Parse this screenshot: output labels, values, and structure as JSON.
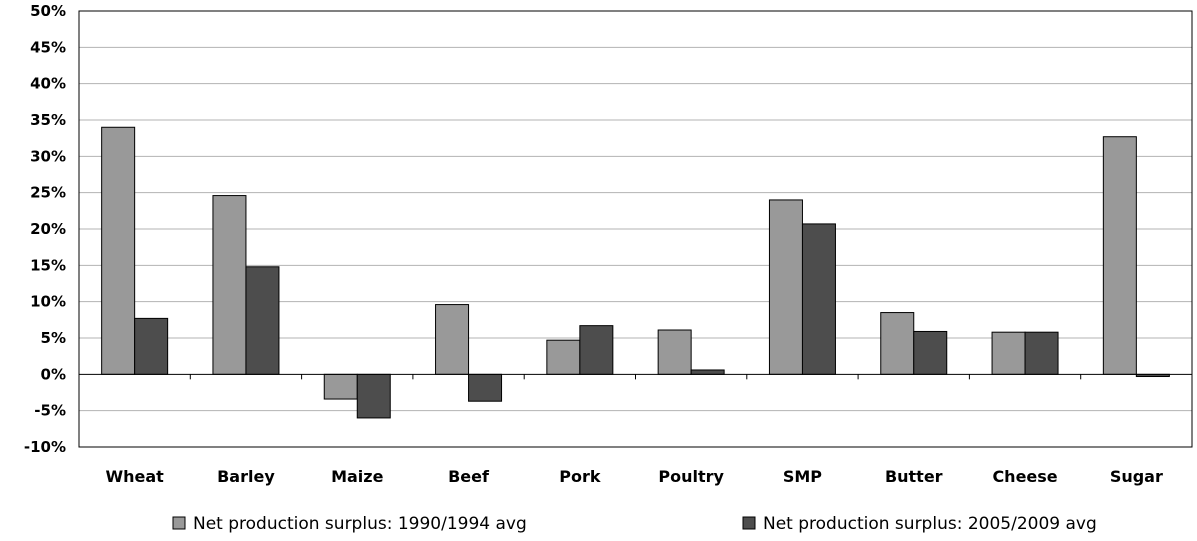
{
  "chart_data": {
    "type": "bar",
    "categories": [
      "Wheat",
      "Barley",
      "Maize",
      "Beef",
      "Pork",
      "Poultry",
      "SMP",
      "Butter",
      "Cheese",
      "Sugar"
    ],
    "series": [
      {
        "name": "Net production surplus: 1990/1994 avg",
        "color": "#999999",
        "values": [
          34.0,
          24.6,
          -3.4,
          9.6,
          4.7,
          6.1,
          24.0,
          8.5,
          5.8,
          32.7
        ]
      },
      {
        "name": "Net production surplus: 2005/2009 avg",
        "color": "#4d4d4d",
        "values": [
          7.7,
          14.8,
          -6.0,
          -3.7,
          6.7,
          0.6,
          20.7,
          5.9,
          5.8,
          -0.3
        ]
      }
    ],
    "ylim": [
      -10,
      50
    ],
    "ytick_step": 5,
    "ytick_labels": [
      "-10%",
      "-5%",
      "0%",
      "5%",
      "10%",
      "15%",
      "20%",
      "25%",
      "30%",
      "35%",
      "40%",
      "45%",
      "50%"
    ],
    "title": "",
    "xlabel": "",
    "ylabel": "",
    "grid": true,
    "legend_position": "bottom"
  }
}
